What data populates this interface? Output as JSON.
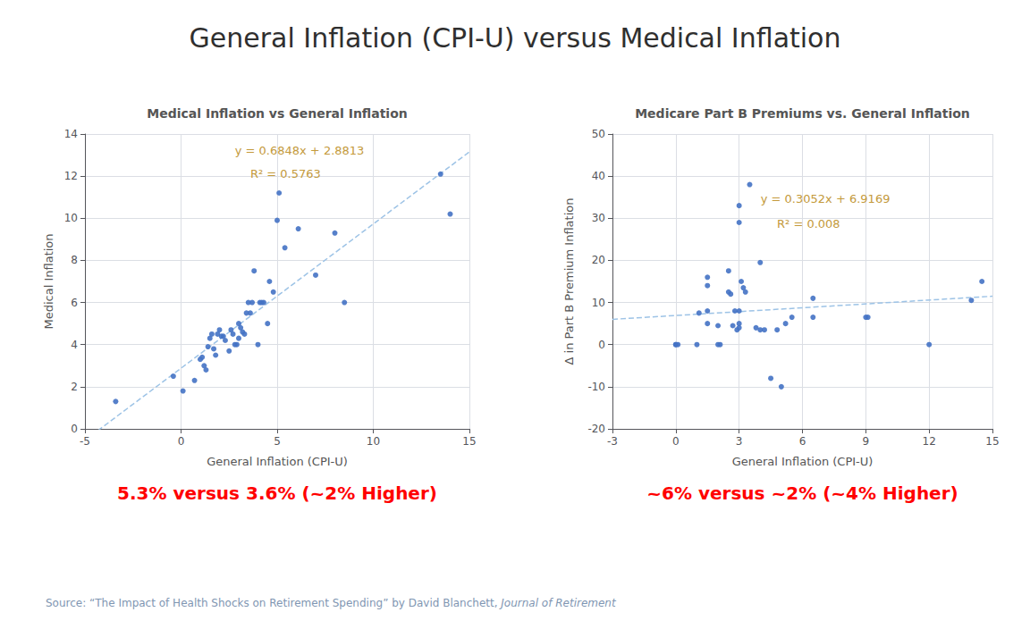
{
  "title": "General Inflation (CPI-U) versus Medical Inflation",
  "source": [
    "Source: “The Impact of Health Shocks on Retirement Spending” by David Blanchett, ",
    "Journal of Retirement"
  ],
  "chart_data": [
    {
      "type": "scatter",
      "title": "Medical Inflation vs General Inflation",
      "xlabel": "General Inflation (CPI-U)",
      "ylabel": "Medical Inflation",
      "xlim": [
        -5,
        15
      ],
      "ylim": [
        0,
        14
      ],
      "xticks": [
        -5,
        0,
        5,
        10,
        15
      ],
      "yticks": [
        0,
        2,
        4,
        6,
        8,
        10,
        12,
        14
      ],
      "grid": true,
      "color": "#4472C4",
      "marker": "circle",
      "x": [
        -3.4,
        -0.4,
        0.1,
        0.7,
        1.0,
        1.1,
        1.2,
        1.3,
        1.4,
        1.5,
        1.6,
        1.7,
        1.8,
        1.9,
        2.0,
        2.1,
        2.2,
        2.3,
        2.5,
        2.6,
        2.7,
        2.8,
        2.9,
        3.0,
        3.0,
        3.1,
        3.2,
        3.3,
        3.4,
        3.5,
        3.6,
        3.7,
        3.8,
        4.0,
        4.1,
        4.2,
        4.3,
        4.5,
        4.6,
        4.8,
        5.0,
        5.1,
        5.4,
        6.1,
        7.0,
        8.0,
        8.5,
        13.5,
        14.0
      ],
      "values": [
        1.3,
        2.5,
        1.8,
        2.3,
        3.3,
        3.4,
        3.0,
        2.8,
        3.9,
        4.3,
        4.5,
        3.8,
        3.5,
        4.5,
        4.7,
        4.4,
        4.4,
        4.2,
        3.7,
        4.7,
        4.5,
        4.0,
        4.0,
        5.0,
        4.3,
        4.8,
        4.6,
        4.5,
        5.5,
        6.0,
        5.5,
        6.0,
        7.5,
        4.0,
        6.0,
        6.0,
        6.0,
        5.0,
        7.0,
        6.5,
        9.9,
        11.2,
        8.6,
        9.5,
        7.3,
        9.3,
        6.0,
        12.1,
        10.2
      ],
      "trendline": {
        "slope": 0.6848,
        "intercept": 2.8813,
        "color": "#9DC3E6",
        "line_style": "dashed"
      },
      "annotations": [
        {
          "text": "y = 0.6848x + 2.8813",
          "color": "#C49A3C"
        },
        {
          "text": "R² = 0.5763",
          "color": "#C49A3C"
        }
      ],
      "caption": {
        "text": "5.3% versus 3.6% (~2% Higher)",
        "color": "#FF0000"
      }
    },
    {
      "type": "scatter",
      "title": "Medicare Part B Premiums vs. General Inflation",
      "xlabel": "General Inflation (CPI-U)",
      "ylabel": "Δ in Part B Premium Inflation",
      "xlim": [
        -3,
        15
      ],
      "ylim": [
        -20,
        50
      ],
      "xticks": [
        -3,
        0,
        3,
        6,
        9,
        12,
        15
      ],
      "yticks": [
        -20,
        -10,
        0,
        10,
        20,
        30,
        40,
        50
      ],
      "grid": true,
      "color": "#4472C4",
      "marker": "circle",
      "x": [
        0.0,
        0.0,
        0.1,
        1.0,
        1.1,
        1.5,
        1.5,
        1.5,
        1.5,
        2.0,
        2.0,
        2.1,
        2.5,
        2.5,
        2.6,
        2.7,
        2.8,
        2.9,
        3.0,
        3.0,
        3.0,
        3.0,
        3.0,
        3.1,
        3.2,
        3.3,
        3.5,
        3.8,
        4.0,
        4.0,
        4.2,
        4.5,
        4.8,
        5.0,
        5.2,
        5.5,
        6.5,
        6.5,
        9.0,
        9.1,
        12.0,
        14.0,
        14.5
      ],
      "values": [
        0.0,
        0.0,
        0.0,
        0.0,
        7.5,
        16.0,
        14.0,
        8.0,
        5.0,
        4.5,
        0.0,
        0.0,
        17.5,
        12.5,
        12.0,
        4.5,
        8.0,
        3.5,
        33.0,
        29.0,
        8.0,
        5.0,
        4.0,
        15.0,
        13.5,
        12.5,
        38.0,
        4.0,
        19.5,
        3.5,
        3.5,
        -8.0,
        3.5,
        -10.0,
        5.0,
        6.5,
        11.0,
        6.5,
        6.5,
        6.5,
        0.0,
        10.5,
        15.0
      ],
      "trendline": {
        "slope": 0.3052,
        "intercept": 6.9169,
        "color": "#9DC3E6",
        "line_style": "dashed"
      },
      "annotations": [
        {
          "text": "y = 0.3052x + 6.9169",
          "color": "#C49A3C"
        },
        {
          "text": "R² = 0.008",
          "color": "#C49A3C"
        }
      ],
      "caption": {
        "text": "~6% versus ~2% (~4% Higher)",
        "color": "#FF0000"
      }
    }
  ]
}
